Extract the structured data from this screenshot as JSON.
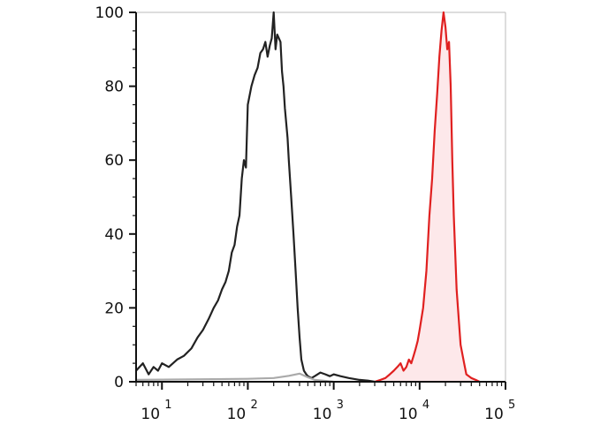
{
  "chart_data": {
    "type": "line",
    "title": "",
    "xlabel": "",
    "ylabel": "",
    "x_scale": "log",
    "xlim": [
      5,
      100000
    ],
    "ylim": [
      0,
      100
    ],
    "grid": false,
    "y_ticks": [
      {
        "value": 0,
        "label": "0"
      },
      {
        "value": 20,
        "label": "20"
      },
      {
        "value": 40,
        "label": "40"
      },
      {
        "value": 60,
        "label": "60"
      },
      {
        "value": 80,
        "label": "80"
      },
      {
        "value": 100,
        "label": "100"
      }
    ],
    "x_ticks": [
      {
        "value": 10,
        "base": "10",
        "exp": "1"
      },
      {
        "value": 100,
        "base": "10",
        "exp": "2"
      },
      {
        "value": 1000,
        "base": "10",
        "exp": "3"
      },
      {
        "value": 10000,
        "base": "10",
        "exp": "4"
      },
      {
        "value": 100000,
        "base": "10",
        "exp": "5"
      }
    ],
    "series": [
      {
        "color": "#222222",
        "fill": "none",
        "x": [
          5,
          6,
          7,
          8,
          9,
          10,
          12,
          15,
          18,
          22,
          26,
          30,
          35,
          40,
          45,
          50,
          55,
          60,
          65,
          70,
          75,
          80,
          85,
          90,
          95,
          100,
          110,
          120,
          130,
          140,
          150,
          160,
          170,
          180,
          190,
          200,
          210,
          220,
          230,
          240,
          250,
          260,
          270,
          280,
          290,
          300,
          320,
          340,
          360,
          380,
          400,
          420,
          450,
          480,
          500,
          550,
          600,
          700,
          800,
          900,
          1000,
          1200,
          1500,
          2000,
          2500,
          3000
        ],
        "y": [
          3,
          5,
          2,
          4,
          3,
          5,
          4,
          6,
          7,
          9,
          12,
          14,
          17,
          20,
          22,
          25,
          27,
          30,
          35,
          37,
          42,
          45,
          55,
          60,
          58,
          75,
          80,
          83,
          85,
          89,
          90,
          92,
          88,
          91,
          93,
          100,
          90,
          94,
          93,
          92,
          84,
          80,
          74,
          70,
          66,
          60,
          50,
          40,
          30,
          20,
          12,
          6,
          3,
          2,
          1.5,
          1,
          1.5,
          2.5,
          2,
          1.5,
          2,
          1.5,
          1,
          0.5,
          0.3,
          0
        ]
      },
      {
        "color": "#aaaaaa",
        "fill": "none",
        "x": [
          5,
          100,
          200,
          300,
          400,
          500,
          600,
          1000
        ],
        "y": [
          0.5,
          0.8,
          1.0,
          1.6,
          2.2,
          1.2,
          0.5,
          0
        ]
      },
      {
        "color": "#e02020",
        "fill": "#fde8ea",
        "x": [
          3000,
          3500,
          4000,
          4500,
          5000,
          5500,
          6000,
          6500,
          7000,
          7500,
          8000,
          8500,
          9000,
          9500,
          10000,
          11000,
          12000,
          13000,
          14000,
          15000,
          16000,
          17000,
          18000,
          19000,
          20000,
          21000,
          22000,
          23000,
          24000,
          25000,
          27000,
          30000,
          33000,
          35000,
          40000,
          45000,
          50000
        ],
        "y": [
          0,
          0.5,
          1,
          2,
          3,
          4,
          5,
          3,
          4,
          6,
          5,
          7,
          9,
          11,
          14,
          20,
          30,
          45,
          55,
          68,
          78,
          88,
          95,
          100,
          96,
          90,
          92,
          80,
          60,
          45,
          25,
          10,
          5,
          2,
          1,
          0.5,
          0
        ]
      }
    ]
  }
}
